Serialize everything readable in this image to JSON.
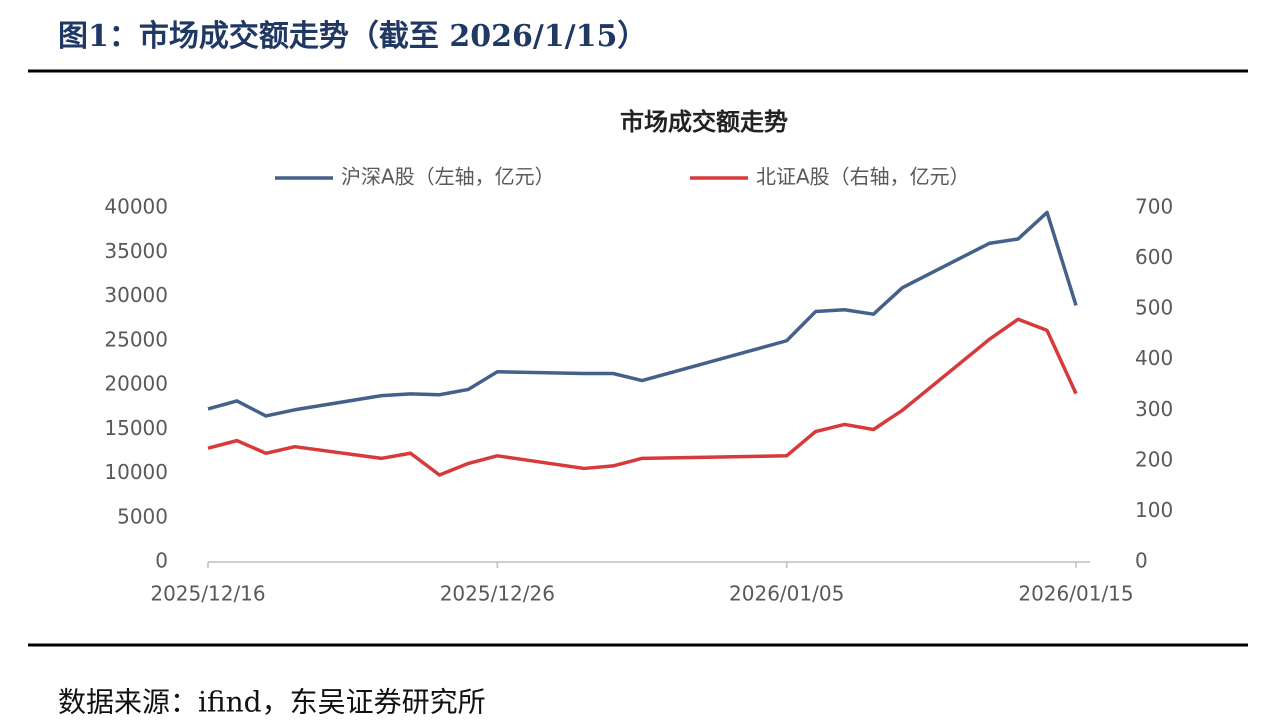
{
  "header": {
    "title": "图1：市场成交额走势（截至 2026/1/15）"
  },
  "chart_data": {
    "type": "line",
    "title": "市场成交额走势",
    "x": [
      "2025/12/16",
      "2025/12/17",
      "2025/12/18",
      "2025/12/19",
      "2025/12/22",
      "2025/12/23",
      "2025/12/24",
      "2025/12/25",
      "2025/12/26",
      "2025/12/29",
      "2025/12/30",
      "2025/12/31",
      "2026/01/05",
      "2026/01/06",
      "2026/01/07",
      "2026/01/08",
      "2026/01/09",
      "2026/01/12",
      "2026/01/13",
      "2026/01/14",
      "2026/01/15"
    ],
    "series": [
      {
        "name": "沪深A股（左轴，亿元）",
        "color": "#44618a",
        "values": [
          17300,
          18200,
          16500,
          17200,
          18800,
          19000,
          18900,
          19500,
          21500,
          21300,
          21300,
          20500,
          25000,
          28300,
          28500,
          28000,
          31000,
          36000,
          36500,
          39500,
          29000
        ]
      },
      {
        "name": "北证A股（右轴，亿元）",
        "color": "#d63a3a",
        "axis": "y2",
        "values": [
          225,
          240,
          215,
          228,
          205,
          215,
          172,
          195,
          210,
          185,
          190,
          205,
          210,
          258,
          272,
          262,
          300,
          440,
          480,
          458,
          333
        ]
      }
    ],
    "xlim": [
      "2025/12/16",
      "2026/01/15"
    ],
    "xticks": [
      "2025/12/16",
      "2025/12/26",
      "2026/01/05",
      "2026/01/15"
    ],
    "ylim": [
      0,
      40000
    ],
    "yticks": [
      0,
      5000,
      10000,
      15000,
      20000,
      25000,
      30000,
      35000,
      40000
    ],
    "y2lim": [
      0,
      700
    ],
    "y2ticks": [
      0,
      100,
      200,
      300,
      400,
      500,
      600,
      700
    ],
    "legend": "top"
  },
  "source": "数据来源：ifind，东吴证券研究所"
}
